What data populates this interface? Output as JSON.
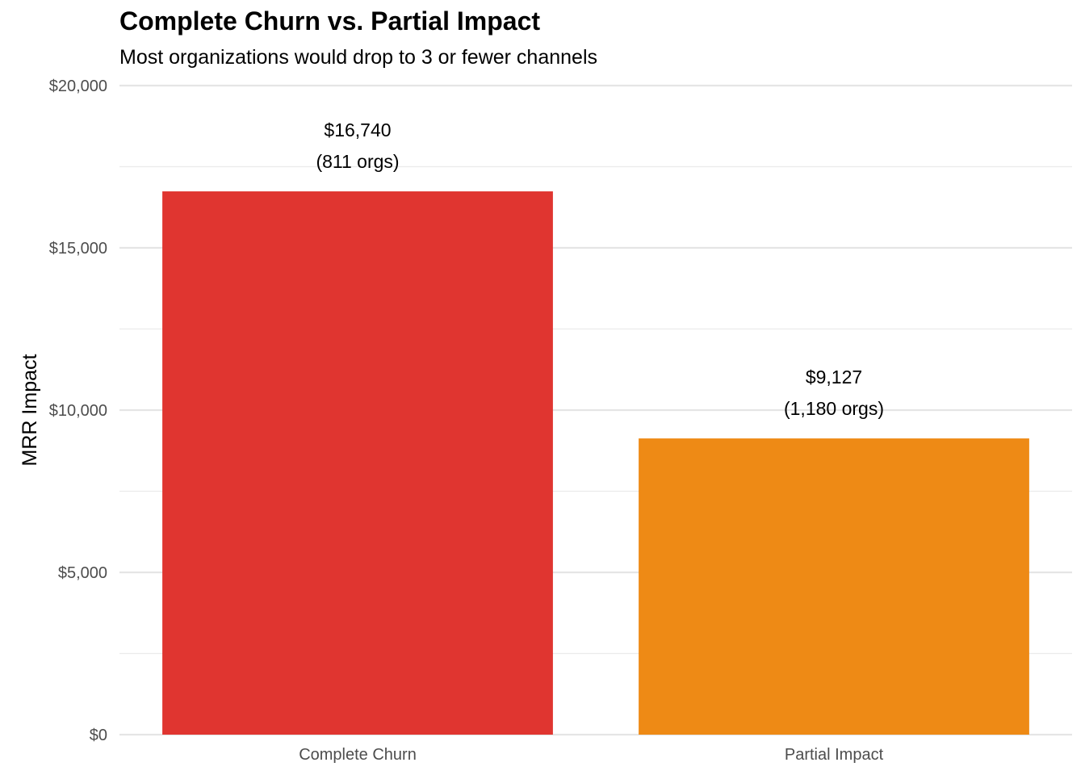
{
  "chart_data": {
    "type": "bar",
    "title": "Complete Churn vs. Partial Impact",
    "subtitle": "Most organizations would drop to 3 or fewer channels",
    "xlabel": "",
    "ylabel": "MRR Impact",
    "ylim": [
      0,
      20000
    ],
    "y_ticks": [
      0,
      5000,
      10000,
      15000,
      20000
    ],
    "y_tick_labels": [
      "$0",
      "$5,000",
      "$10,000",
      "$15,000",
      "$20,000"
    ],
    "grid": true,
    "legend": "none",
    "categories": [
      "Complete Churn",
      "Partial Impact"
    ],
    "values": [
      16740,
      9127
    ],
    "value_labels": [
      "$16,740",
      "$9,127"
    ],
    "count_labels": [
      "(811 orgs)",
      "(1,180 orgs)"
    ],
    "colors": [
      "#E03530",
      "#EE8A15"
    ]
  }
}
